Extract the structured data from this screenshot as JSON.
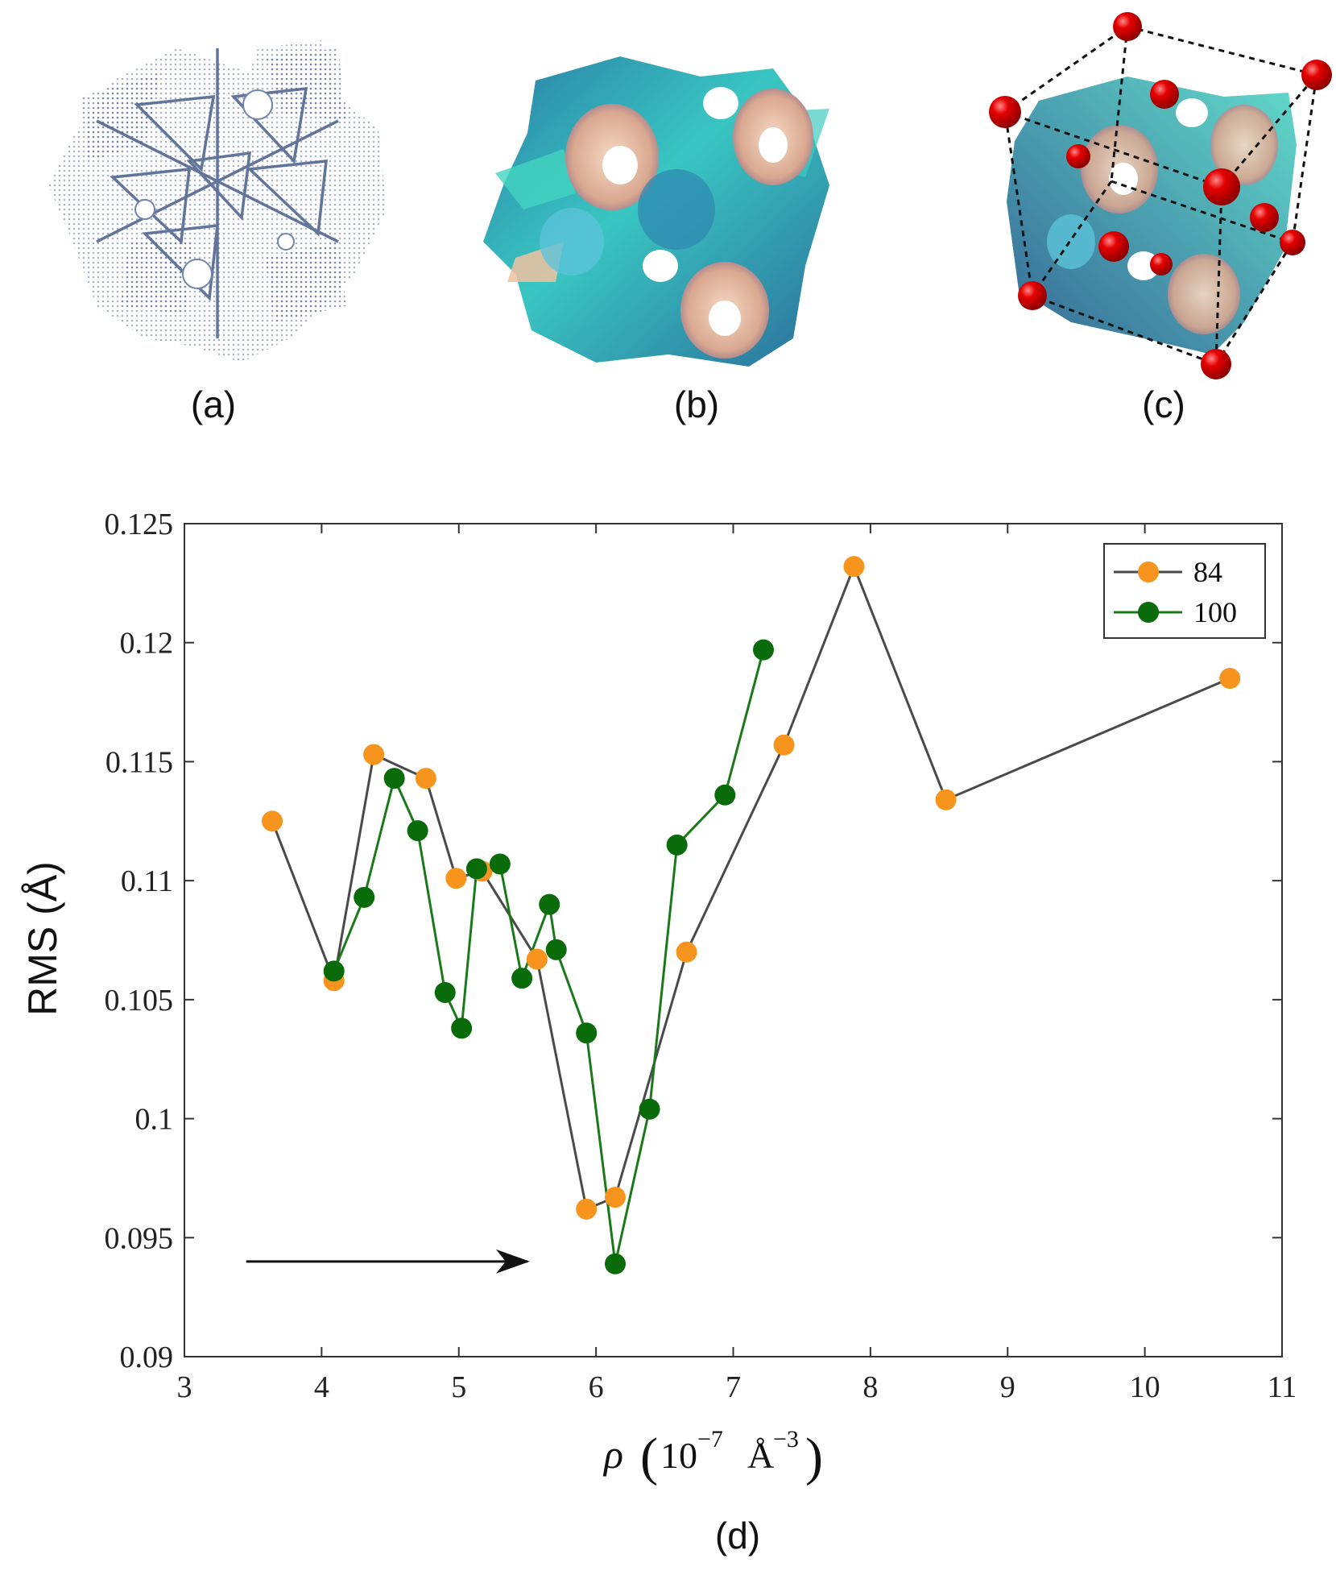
{
  "panels": {
    "a": {
      "label": "(a)"
    },
    "b": {
      "label": "(b)"
    },
    "c": {
      "label": "(c)"
    },
    "d": {
      "label": "(d)"
    }
  },
  "colors": {
    "point_cloud": "#5a6f9a",
    "surface_teal": "#3cc8c0",
    "surface_blue": "#2e7fa8",
    "surface_peach": "#f2c8a8",
    "atom_red": "#d40000",
    "series_84_marker": "#f7941d",
    "series_84_line": "#4a4a4a",
    "series_100_marker": "#0a6b0a",
    "series_100_line": "#1a7a1a"
  },
  "chart_data": {
    "type": "line",
    "ylabel": "RMS (Å)",
    "xlabel_symbol": "ρ",
    "xlabel_units": "10",
    "xlabel_exp": "−7",
    "xlabel_unit2": "Å",
    "xlabel_exp2": "−3",
    "xlim": [
      3,
      11
    ],
    "ylim": [
      0.09,
      0.125
    ],
    "x_ticks": [
      3,
      4,
      5,
      6,
      7,
      8,
      9,
      10,
      11
    ],
    "x_tick_labels": [
      "3",
      "4",
      "5",
      "6",
      "7",
      "8",
      "9",
      "10",
      "11"
    ],
    "y_ticks": [
      0.09,
      0.095,
      0.1,
      0.105,
      0.11,
      0.115,
      0.12,
      0.125
    ],
    "y_tick_labels": [
      "0.09",
      "0.095",
      "0.1",
      "0.105",
      "0.11",
      "0.115",
      "0.12",
      "0.125"
    ],
    "legend_position": "top-right",
    "series": [
      {
        "name": "84",
        "x": [
          3.64,
          4.09,
          4.38,
          4.76,
          4.98,
          5.17,
          5.57,
          5.93,
          6.14,
          6.66,
          7.37,
          7.88,
          8.55,
          10.62
        ],
        "y": [
          0.1125,
          0.1058,
          0.1153,
          0.1143,
          0.1101,
          0.1104,
          0.1067,
          0.0962,
          0.0967,
          0.107,
          0.1157,
          0.1232,
          0.1134,
          0.1185
        ]
      },
      {
        "name": "100",
        "x": [
          4.09,
          4.31,
          4.53,
          4.7,
          4.9,
          5.02,
          5.13,
          5.3,
          5.46,
          5.66,
          5.71,
          5.93,
          6.14,
          6.39,
          6.59,
          6.94,
          7.22
        ],
        "y": [
          0.1062,
          0.1093,
          0.1143,
          0.1121,
          0.1053,
          0.1038,
          0.1105,
          0.1107,
          0.1059,
          0.109,
          0.1071,
          0.1036,
          0.0939,
          0.1004,
          0.1115,
          0.1136,
          0.1197
        ]
      }
    ],
    "annotation": {
      "type": "arrow",
      "from": [
        3.45,
        0.094
      ],
      "to": [
        5.5,
        0.094
      ]
    }
  }
}
